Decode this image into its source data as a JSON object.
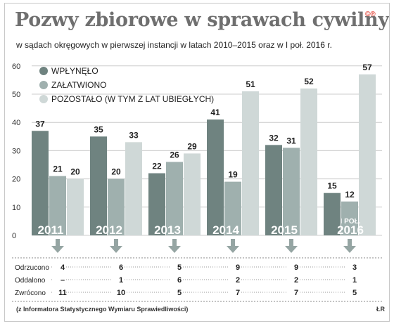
{
  "title": "Pozwy zbiorowe w sprawach cywilnych",
  "subtitle": "w sądach okręgowych w pierwszej instancji w latach 2010–2015 oraz w I poł. 2016 r.",
  "logo": "©℗",
  "source": "(z Informatora Statystycznego Wymiaru Sprawiedliwości)",
  "author": "ŁR",
  "colors": {
    "wplynelo": "#6f8380",
    "zalatwiono": "#9fb0ae",
    "pozostalo": "#cfd8d7",
    "arrow": "#95a5a3",
    "grid": "#cccccc"
  },
  "chart_data": {
    "type": "bar",
    "categories": [
      "2011",
      "2012",
      "2013",
      "2014",
      "2015",
      "2016"
    ],
    "category_prefixes": [
      "",
      "",
      "",
      "",
      "",
      "I POŁ."
    ],
    "series": [
      {
        "name": "WPŁYNĘŁO",
        "values": [
          37,
          35,
          22,
          41,
          32,
          15
        ]
      },
      {
        "name": "ZAŁATWIONO",
        "values": [
          21,
          20,
          26,
          19,
          31,
          12
        ]
      },
      {
        "name": "POZOSTAŁO (W TYM Z LAT UBIEGŁYCH)",
        "values": [
          20,
          33,
          29,
          51,
          52,
          57
        ]
      }
    ],
    "ylim": [
      0,
      60
    ],
    "yticks": [
      0,
      10,
      20,
      30,
      40,
      50,
      60
    ],
    "grid": true,
    "legend": "top-left"
  },
  "table": {
    "rows": [
      {
        "label": "Odrzucono",
        "values": [
          "4",
          "6",
          "5",
          "9",
          "9",
          "3"
        ]
      },
      {
        "label": "Oddalono",
        "values": [
          "–",
          "1",
          "6",
          "2",
          "2",
          "1"
        ]
      },
      {
        "label": "Zwrócono",
        "values": [
          "11",
          "10",
          "5",
          "7",
          "7",
          "5"
        ]
      }
    ]
  }
}
